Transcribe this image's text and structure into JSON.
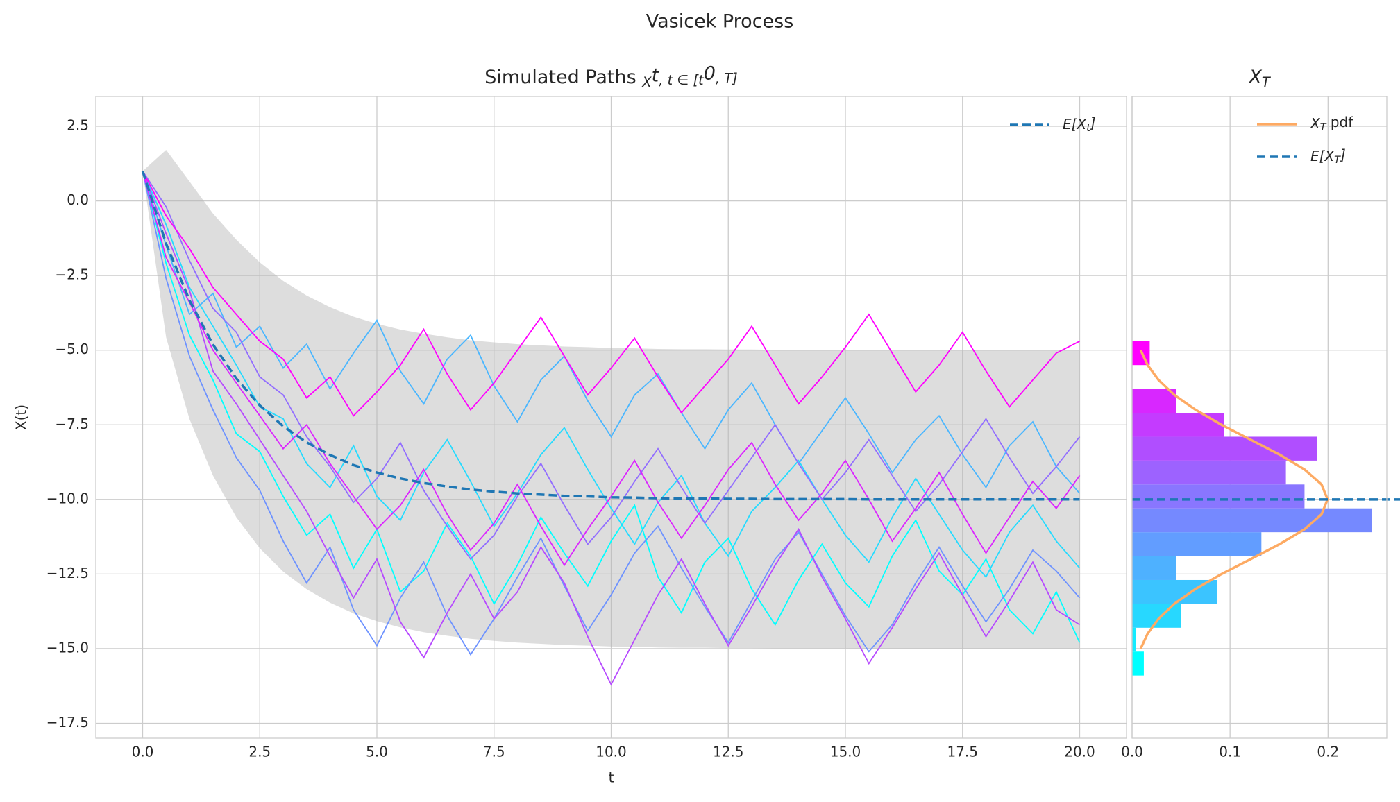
{
  "title": "Vasicek Process",
  "chart_data": [
    {
      "type": "line",
      "title": [
        "Simulated Paths ",
        "X",
        "t",
        ", t ∈ [t",
        "0",
        ", T]"
      ],
      "xlabel": "t",
      "ylabel": "X(t)",
      "xlim": [
        -1,
        21
      ],
      "ylim": [
        -18,
        3.5
      ],
      "xticks": [
        {
          "value": 0,
          "label": "0.0"
        },
        2.5,
        {
          "value": 5,
          "label": "5.0"
        },
        7.5,
        {
          "value": 10,
          "label": "10.0"
        },
        12.5,
        {
          "value": 15,
          "label": "15.0"
        },
        17.5,
        {
          "value": 20,
          "label": "20.0"
        }
      ],
      "yticks": [
        2.5,
        {
          "value": 0,
          "label": "0.0"
        },
        {
          "value": -2.5,
          "label": "−2.5"
        },
        {
          "value": -5,
          "label": "−5.0"
        },
        {
          "value": -7.5,
          "label": "−7.5"
        },
        {
          "value": -10,
          "label": "−10.0"
        },
        {
          "value": -12.5,
          "label": "−12.5"
        },
        {
          "value": -15,
          "label": "−15.0"
        },
        {
          "value": -17.5,
          "label": "−17.5"
        }
      ],
      "grid": true,
      "legend": "upper right",
      "x": [
        0,
        0.5,
        1,
        1.5,
        2,
        2.5,
        3,
        3.5,
        4,
        4.5,
        5,
        5.5,
        6,
        6.5,
        7,
        7.5,
        8,
        8.5,
        9,
        9.5,
        10,
        10.5,
        11,
        11.5,
        12,
        12.5,
        13,
        13.5,
        14,
        14.5,
        15,
        15.5,
        16,
        16.5,
        17,
        17.5,
        18,
        18.5,
        19,
        19.5,
        20
      ],
      "band": {
        "color": "#b3b3b3",
        "upper": [
          1.0,
          1.71,
          0.65,
          -0.42,
          -1.3,
          -2.06,
          -2.68,
          -3.17,
          -3.56,
          -3.88,
          -4.12,
          -4.31,
          -4.45,
          -4.57,
          -4.67,
          -4.74,
          -4.8,
          -4.84,
          -4.88,
          -4.9,
          -4.93,
          -4.94,
          -4.96,
          -4.97,
          -4.97,
          -4.98,
          -4.98,
          -4.99,
          -4.99,
          -4.99,
          -4.99,
          -5.0,
          -5.0,
          -5.0,
          -5.0,
          -5.0,
          -5.0,
          -5.0,
          -5.0,
          -5.0,
          -5.0
        ],
        "lower": [
          1.0,
          -4.57,
          -7.31,
          -9.2,
          -10.6,
          -11.64,
          -12.42,
          -13.01,
          -13.46,
          -13.82,
          -14.08,
          -14.29,
          -14.45,
          -14.57,
          -14.67,
          -14.74,
          -14.8,
          -14.84,
          -14.88,
          -14.9,
          -14.93,
          -14.94,
          -14.96,
          -14.97,
          -14.97,
          -14.98,
          -14.98,
          -14.99,
          -14.99,
          -14.99,
          -14.99,
          -15.0,
          -15.0,
          -15.0,
          -15.0,
          -15.0,
          -15.0,
          -15.0,
          -15.0,
          -15.0,
          -15.0
        ]
      },
      "paths": [
        {
          "color": "#00ffff",
          "values": [
            1.0,
            -2.1,
            -4.5,
            -6.0,
            -7.8,
            -8.4,
            -9.9,
            -11.2,
            -10.5,
            -12.3,
            -11.0,
            -13.1,
            -12.4,
            -10.8,
            -11.9,
            -13.5,
            -12.2,
            -10.6,
            -11.8,
            -12.9,
            -11.4,
            -10.2,
            -12.6,
            -13.8,
            -12.1,
            -11.3,
            -13.0,
            -14.2,
            -12.7,
            -11.5,
            -12.8,
            -13.6,
            -11.9,
            -10.7,
            -12.4,
            -13.2,
            -12.0,
            -13.7,
            -14.5,
            -13.1,
            -14.8
          ]
        },
        {
          "color": "#24dbff",
          "values": [
            1.0,
            -0.8,
            -2.9,
            -4.2,
            -5.5,
            -6.9,
            -7.3,
            -8.8,
            -9.6,
            -8.2,
            -9.9,
            -10.7,
            -9.1,
            -8.0,
            -9.4,
            -10.9,
            -9.8,
            -8.5,
            -7.6,
            -9.0,
            -10.3,
            -11.5,
            -10.1,
            -9.2,
            -10.8,
            -11.9,
            -10.4,
            -9.6,
            -8.7,
            -10.0,
            -11.2,
            -12.1,
            -10.6,
            -9.3,
            -10.5,
            -11.7,
            -12.6,
            -11.1,
            -10.2,
            -11.4,
            -12.3
          ]
        },
        {
          "color": "#49b6ff",
          "values": [
            1.0,
            -1.5,
            -3.8,
            -3.1,
            -4.9,
            -4.2,
            -5.6,
            -4.8,
            -6.3,
            -5.1,
            -4.0,
            -5.7,
            -6.8,
            -5.3,
            -4.5,
            -6.2,
            -7.4,
            -6.0,
            -5.2,
            -6.7,
            -7.9,
            -6.5,
            -5.8,
            -7.1,
            -8.3,
            -7.0,
            -6.1,
            -7.5,
            -8.8,
            -7.7,
            -6.6,
            -7.8,
            -9.1,
            -8.0,
            -7.2,
            -8.5,
            -9.6,
            -8.2,
            -7.4,
            -8.9,
            -9.8
          ]
        },
        {
          "color": "#6d92ff",
          "values": [
            1.0,
            -2.6,
            -5.2,
            -7.0,
            -8.6,
            -9.7,
            -11.4,
            -12.8,
            -11.6,
            -13.7,
            -14.9,
            -13.3,
            -12.1,
            -13.9,
            -15.2,
            -14.0,
            -12.6,
            -11.3,
            -12.9,
            -14.4,
            -13.2,
            -11.8,
            -10.9,
            -12.3,
            -13.6,
            -14.8,
            -13.4,
            -12.0,
            -11.1,
            -12.5,
            -13.9,
            -15.1,
            -14.2,
            -12.8,
            -11.6,
            -12.9,
            -14.1,
            -13.0,
            -11.7,
            -12.4,
            -13.3
          ]
        },
        {
          "color": "#926dff",
          "values": [
            1.0,
            -0.2,
            -2.0,
            -3.6,
            -4.4,
            -5.9,
            -6.5,
            -7.9,
            -8.9,
            -10.1,
            -9.3,
            -8.1,
            -9.7,
            -10.9,
            -12.0,
            -11.2,
            -9.9,
            -8.8,
            -10.2,
            -11.5,
            -10.6,
            -9.4,
            -8.3,
            -9.6,
            -10.8,
            -9.7,
            -8.6,
            -7.5,
            -8.8,
            -10.0,
            -9.1,
            -8.0,
            -9.2,
            -10.4,
            -9.5,
            -8.4,
            -7.3,
            -8.6,
            -9.8,
            -8.9,
            -7.9
          ]
        },
        {
          "color": "#b649ff",
          "values": [
            1.0,
            -1.1,
            -3.0,
            -5.7,
            -6.8,
            -8.0,
            -9.2,
            -10.4,
            -11.9,
            -13.3,
            -12.0,
            -14.1,
            -15.3,
            -13.8,
            -12.5,
            -14.0,
            -13.1,
            -11.6,
            -12.8,
            -14.6,
            -16.2,
            -14.7,
            -13.2,
            -12.0,
            -13.5,
            -14.9,
            -13.6,
            -12.2,
            -11.0,
            -12.6,
            -14.0,
            -15.5,
            -14.3,
            -13.0,
            -11.8,
            -13.2,
            -14.6,
            -13.4,
            -12.1,
            -13.7,
            -14.2
          ]
        },
        {
          "color": "#db24ff",
          "values": [
            1.0,
            -1.9,
            -3.4,
            -5.0,
            -6.1,
            -7.2,
            -8.3,
            -7.5,
            -8.8,
            -9.9,
            -11.0,
            -10.2,
            -9.0,
            -10.5,
            -11.7,
            -10.8,
            -9.5,
            -10.9,
            -12.2,
            -11.0,
            -9.9,
            -8.7,
            -10.1,
            -11.3,
            -10.2,
            -9.0,
            -8.1,
            -9.5,
            -10.7,
            -9.8,
            -8.7,
            -10.0,
            -11.4,
            -10.3,
            -9.1,
            -10.5,
            -11.8,
            -10.6,
            -9.4,
            -10.3,
            -9.2
          ]
        },
        {
          "color": "#ff00ff",
          "values": [
            1.0,
            -0.5,
            -1.6,
            -2.9,
            -3.8,
            -4.7,
            -5.3,
            -6.6,
            -5.9,
            -7.2,
            -6.4,
            -5.5,
            -4.3,
            -5.8,
            -7.0,
            -6.1,
            -5.0,
            -3.9,
            -5.2,
            -6.5,
            -5.6,
            -4.6,
            -5.9,
            -7.1,
            -6.2,
            -5.3,
            -4.2,
            -5.5,
            -6.8,
            -5.9,
            -4.9,
            -3.8,
            -5.1,
            -6.4,
            -5.5,
            -4.4,
            -5.7,
            -6.9,
            -6.0,
            -5.1,
            -4.7
          ]
        }
      ],
      "mean": {
        "name": [
          "E[X",
          "t",
          "]"
        ],
        "color": "#1f77b4",
        "values": [
          1.0,
          -1.43,
          -3.33,
          -4.81,
          -5.95,
          -6.85,
          -7.55,
          -8.09,
          -8.51,
          -8.85,
          -9.1,
          -9.3,
          -9.45,
          -9.57,
          -9.67,
          -9.74,
          -9.8,
          -9.84,
          -9.88,
          -9.9,
          -9.93,
          -9.94,
          -9.96,
          -9.97,
          -9.97,
          -9.98,
          -9.98,
          -9.99,
          -9.99,
          -9.99,
          -9.99,
          -10.0,
          -10.0,
          -10.0,
          -10.0,
          -10.0,
          -10.0,
          -10.0,
          -10.0,
          -10.0,
          -10.0
        ]
      }
    },
    {
      "type": "histogram",
      "orientation": "horizontal",
      "title": [
        "X",
        "T"
      ],
      "xlim": [
        0,
        0.26
      ],
      "ylim": [
        -18,
        3.5
      ],
      "xticks": [
        {
          "value": 0,
          "label": "0.0"
        },
        0.1,
        0.2
      ],
      "grid": true,
      "legend": "upper right",
      "bins": [
        -15.9,
        -15.1,
        -14.3,
        -13.5,
        -12.7,
        -11.9,
        -11.1,
        -10.3,
        -9.5,
        -8.7,
        -7.9,
        -7.1,
        -6.3,
        -5.5,
        -4.7
      ],
      "values": [
        0.012,
        0.004,
        0.05,
        0.087,
        0.045,
        0.132,
        0.245,
        0.176,
        0.157,
        0.189,
        0.094,
        0.045,
        0,
        0.018
      ],
      "colors": [
        "#00ffff",
        "#14ebff",
        "#27d8ff",
        "#3bc4ff",
        "#4eb1ff",
        "#629dff",
        "#7589ff",
        "#8976ff",
        "#9d62ff",
        "#b04eff",
        "#c43bff",
        "#d827ff",
        "#eb14ff",
        "#ff00ff"
      ],
      "pdf": {
        "name": [
          "X",
          "T",
          " pdf"
        ],
        "color": "#fdaa63",
        "y": [
          -15,
          -14.5,
          -14,
          -13.5,
          -13,
          -12.5,
          -12,
          -11.5,
          -11,
          -10.5,
          -10,
          -9.5,
          -9,
          -8.5,
          -8,
          -7.5,
          -7,
          -6.5,
          -6,
          -5.5,
          -5
        ],
        "density": [
          0.0088,
          0.0159,
          0.027,
          0.0431,
          0.0648,
          0.0913,
          0.121,
          0.1506,
          0.1761,
          0.1934,
          0.1995,
          0.1934,
          0.1761,
          0.1506,
          0.121,
          0.0913,
          0.0648,
          0.0431,
          0.027,
          0.0159,
          0.0088
        ]
      },
      "mean_line": {
        "name": [
          "E[X",
          "T",
          "]"
        ],
        "color": "#1f77b4",
        "value": -10
      }
    }
  ]
}
